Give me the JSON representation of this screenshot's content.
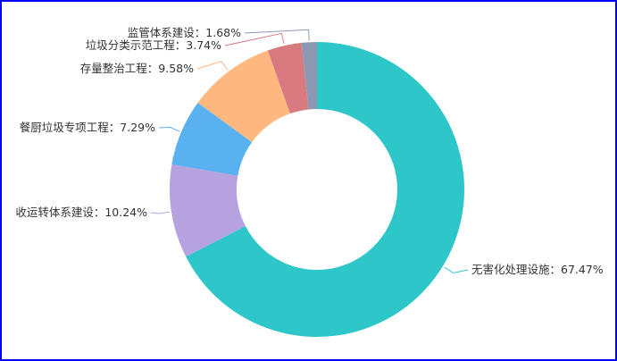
{
  "chart_data": {
    "type": "pie",
    "donut": true,
    "categories": [
      "无害化处理设施",
      "收运转体系建设",
      "餐厨垃圾专项工程",
      "存量整治工程",
      "垃圾分类示范工程",
      "监管体系建设"
    ],
    "values": [
      67.47,
      10.24,
      7.29,
      9.58,
      3.74,
      1.68
    ],
    "labels": [
      "无害化处理设施：67.47%",
      "收运转体系建设：10.24%",
      "餐厨垃圾专项工程：7.29%",
      "存量整治工程：9.58%",
      "垃圾分类示范工程：3.74%",
      "监管体系建设：1.68%"
    ],
    "colors": [
      "#2ec7c9",
      "#b6a2de",
      "#5ab1ef",
      "#ffb980",
      "#d87a80",
      "#8d98b3"
    ],
    "legend": "none"
  }
}
